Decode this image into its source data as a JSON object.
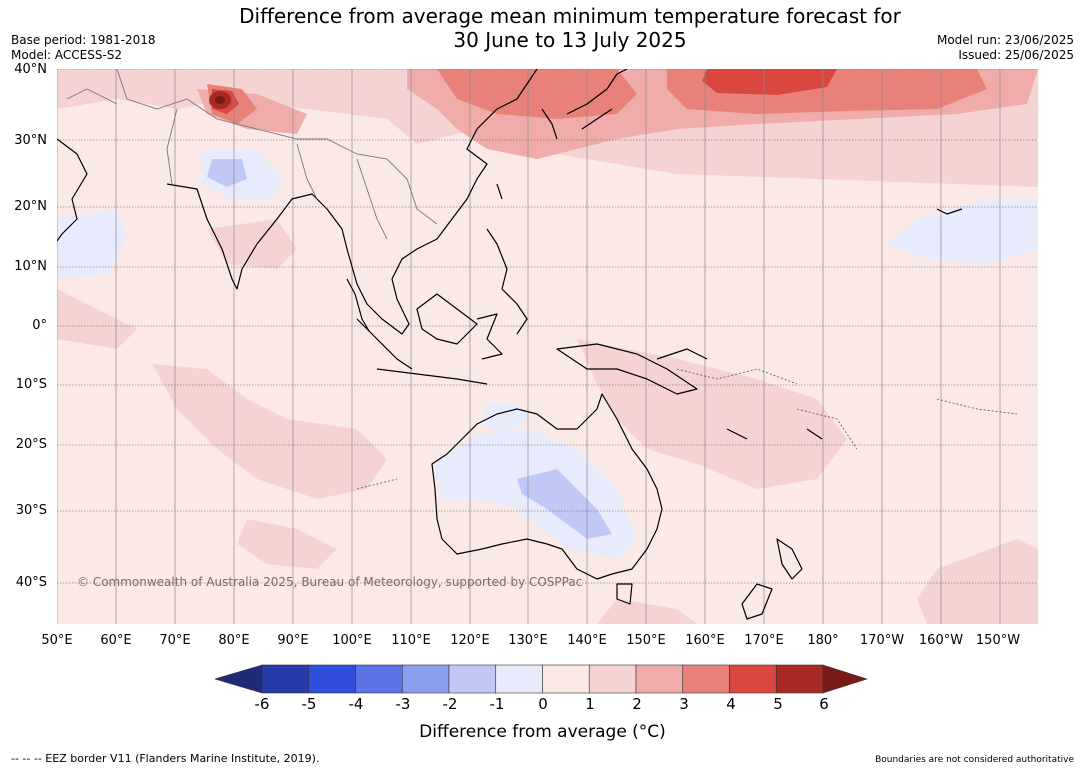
{
  "title": {
    "line1": "Difference from average mean minimum temperature forecast for",
    "line2": "30 June to 13 July 2025"
  },
  "meta": {
    "base_period": "Base period: 1981-2018",
    "model": "Model: ACCESS-S2",
    "model_run": "Model run: 23/06/2025",
    "issued": "Issued: 25/06/2025"
  },
  "axes": {
    "latitudes": [
      "40°N",
      "30°N",
      "20°N",
      "10°N",
      "0°",
      "10°S",
      "20°S",
      "30°S",
      "40°S"
    ],
    "longitudes": [
      "50°E",
      "60°E",
      "70°E",
      "80°E",
      "90°E",
      "100°E",
      "110°E",
      "120°E",
      "130°E",
      "140°E",
      "150°E",
      "160°E",
      "170°E",
      "180°",
      "170°W",
      "160°W",
      "150°W"
    ]
  },
  "copyright": "© Commonwealth of Australia 2025, Bureau of Meteorology, supported by COSPPac",
  "legend": {
    "ticks": [
      "-6",
      "-5",
      "-4",
      "-3",
      "-2",
      "-1",
      "0",
      "1",
      "2",
      "3",
      "4",
      "5",
      "6"
    ],
    "colors": [
      "#1f2b76",
      "#263cab",
      "#2f4fdc",
      "#5c74e6",
      "#8c9eee",
      "#c0c9f5",
      "#e8ebfb",
      "#fbe9e7",
      "#f5d3d2",
      "#efacaa",
      "#e7817a",
      "#d9473e",
      "#a82a25",
      "#7a1a18"
    ],
    "title": "Difference from average (°C)"
  },
  "footer": {
    "eez_note": "--  --  -- EEZ border V11 (Flanders Marine Institute, 2019).",
    "boundaries_note": "Boundaries are not considered authoritative"
  }
}
